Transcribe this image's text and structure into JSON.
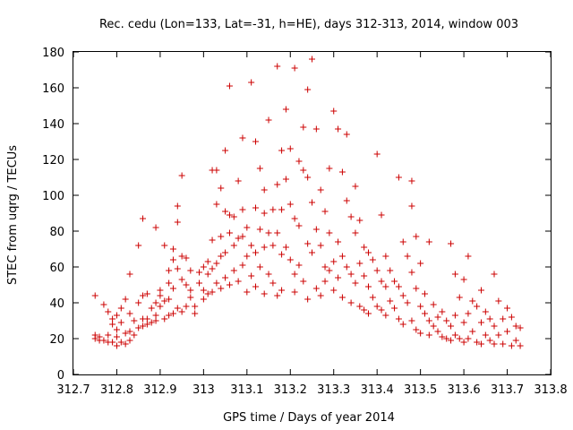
{
  "chart_data": {
    "type": "scatter",
    "title": "Rec. cedu (Lon=133, Lat=-31, h=HE), days 312-313, 2014, window 003",
    "xlabel": "GPS time / Days of year 2014",
    "ylabel": "STEC from uqrg / TECUs",
    "xlim": [
      312.7,
      313.8
    ],
    "ylim": [
      0,
      180
    ],
    "xticks": [
      "312.7",
      "312.8",
      "312.9",
      "313",
      "313.1",
      "313.2",
      "313.3",
      "313.4",
      "313.5",
      "313.6",
      "313.7",
      "313.8"
    ],
    "yticks": [
      "0",
      "20",
      "40",
      "60",
      "80",
      "100",
      "120",
      "140",
      "160",
      "180"
    ],
    "marker": "+",
    "color": "#cc0000",
    "grid": false,
    "legend": "none",
    "points": [
      [
        312.75,
        44
      ],
      [
        312.75,
        22
      ],
      [
        312.75,
        20
      ],
      [
        312.76,
        21
      ],
      [
        312.76,
        19
      ],
      [
        312.77,
        39
      ],
      [
        312.77,
        19
      ],
      [
        312.78,
        35
      ],
      [
        312.78,
        22
      ],
      [
        312.78,
        18
      ],
      [
        312.79,
        31
      ],
      [
        312.79,
        28
      ],
      [
        312.79,
        18
      ],
      [
        312.8,
        33
      ],
      [
        312.8,
        25
      ],
      [
        312.8,
        21
      ],
      [
        312.8,
        16
      ],
      [
        312.81,
        37
      ],
      [
        312.81,
        29
      ],
      [
        312.81,
        18
      ],
      [
        312.82,
        42
      ],
      [
        312.82,
        23
      ],
      [
        312.82,
        17
      ],
      [
        312.83,
        56
      ],
      [
        312.83,
        34
      ],
      [
        312.83,
        24
      ],
      [
        312.83,
        19
      ],
      [
        312.84,
        30
      ],
      [
        312.84,
        22
      ],
      [
        312.85,
        72
      ],
      [
        312.85,
        40
      ],
      [
        312.85,
        26
      ],
      [
        312.86,
        87
      ],
      [
        312.86,
        44
      ],
      [
        312.86,
        31
      ],
      [
        312.86,
        27
      ],
      [
        312.87,
        45
      ],
      [
        312.87,
        31
      ],
      [
        312.87,
        28
      ],
      [
        312.88,
        37
      ],
      [
        312.88,
        29
      ],
      [
        312.89,
        82
      ],
      [
        312.89,
        40
      ],
      [
        312.89,
        33
      ],
      [
        312.89,
        30
      ],
      [
        312.9,
        47
      ],
      [
        312.9,
        44
      ],
      [
        312.9,
        38
      ],
      [
        312.91,
        72
      ],
      [
        312.91,
        41
      ],
      [
        312.91,
        31
      ],
      [
        312.92,
        58
      ],
      [
        312.92,
        51
      ],
      [
        312.92,
        42
      ],
      [
        312.92,
        33
      ],
      [
        312.93,
        70
      ],
      [
        312.93,
        64
      ],
      [
        312.93,
        48
      ],
      [
        312.93,
        34
      ],
      [
        312.94,
        94
      ],
      [
        312.94,
        85
      ],
      [
        312.94,
        59
      ],
      [
        312.94,
        37
      ],
      [
        312.95,
        111
      ],
      [
        312.95,
        66
      ],
      [
        312.95,
        53
      ],
      [
        312.95,
        35
      ],
      [
        312.96,
        65
      ],
      [
        312.96,
        50
      ],
      [
        312.96,
        38
      ],
      [
        312.97,
        58
      ],
      [
        312.97,
        47
      ],
      [
        312.97,
        43
      ],
      [
        312.98,
        38
      ],
      [
        312.98,
        34
      ],
      [
        312.99,
        57
      ],
      [
        312.99,
        51
      ],
      [
        313.0,
        60
      ],
      [
        313.0,
        47
      ],
      [
        313.0,
        42
      ],
      [
        313.01,
        63
      ],
      [
        313.01,
        56
      ],
      [
        313.01,
        45
      ],
      [
        313.02,
        114
      ],
      [
        313.02,
        75
      ],
      [
        313.02,
        59
      ],
      [
        313.02,
        46
      ],
      [
        313.03,
        114
      ],
      [
        313.03,
        95
      ],
      [
        313.03,
        62
      ],
      [
        313.03,
        51
      ],
      [
        313.04,
        104
      ],
      [
        313.04,
        77
      ],
      [
        313.04,
        66
      ],
      [
        313.04,
        48
      ],
      [
        313.05,
        125
      ],
      [
        313.05,
        91
      ],
      [
        313.05,
        68
      ],
      [
        313.05,
        54
      ],
      [
        313.06,
        161
      ],
      [
        313.06,
        89
      ],
      [
        313.06,
        79
      ],
      [
        313.06,
        50
      ],
      [
        313.07,
        88
      ],
      [
        313.07,
        72
      ],
      [
        313.07,
        58
      ],
      [
        313.08,
        108
      ],
      [
        313.08,
        76
      ],
      [
        313.08,
        52
      ],
      [
        313.09,
        132
      ],
      [
        313.09,
        92
      ],
      [
        313.09,
        77
      ],
      [
        313.09,
        61
      ],
      [
        313.1,
        82
      ],
      [
        313.1,
        66
      ],
      [
        313.1,
        46
      ],
      [
        313.11,
        163
      ],
      [
        313.11,
        72
      ],
      [
        313.11,
        55
      ],
      [
        313.12,
        130
      ],
      [
        313.12,
        93
      ],
      [
        313.12,
        68
      ],
      [
        313.12,
        49
      ],
      [
        313.13,
        115
      ],
      [
        313.13,
        81
      ],
      [
        313.13,
        60
      ],
      [
        313.14,
        103
      ],
      [
        313.14,
        90
      ],
      [
        313.14,
        71
      ],
      [
        313.14,
        45
      ],
      [
        313.15,
        142
      ],
      [
        313.15,
        79
      ],
      [
        313.15,
        56
      ],
      [
        313.16,
        92
      ],
      [
        313.16,
        72
      ],
      [
        313.16,
        51
      ],
      [
        313.17,
        172
      ],
      [
        313.17,
        106
      ],
      [
        313.17,
        79
      ],
      [
        313.17,
        44
      ],
      [
        313.18,
        125
      ],
      [
        313.18,
        92
      ],
      [
        313.18,
        67
      ],
      [
        313.18,
        47
      ],
      [
        313.19,
        148
      ],
      [
        313.19,
        109
      ],
      [
        313.19,
        71
      ],
      [
        313.2,
        126
      ],
      [
        313.2,
        95
      ],
      [
        313.2,
        64
      ],
      [
        313.21,
        171
      ],
      [
        313.21,
        87
      ],
      [
        313.21,
        56
      ],
      [
        313.21,
        46
      ],
      [
        313.22,
        119
      ],
      [
        313.22,
        83
      ],
      [
        313.22,
        61
      ],
      [
        313.23,
        138
      ],
      [
        313.23,
        114
      ],
      [
        313.23,
        52
      ],
      [
        313.24,
        159
      ],
      [
        313.24,
        110
      ],
      [
        313.24,
        73
      ],
      [
        313.24,
        42
      ],
      [
        313.25,
        176
      ],
      [
        313.25,
        96
      ],
      [
        313.25,
        68
      ],
      [
        313.26,
        137
      ],
      [
        313.26,
        81
      ],
      [
        313.26,
        48
      ],
      [
        313.27,
        103
      ],
      [
        313.27,
        72
      ],
      [
        313.27,
        44
      ],
      [
        313.28,
        91
      ],
      [
        313.28,
        60
      ],
      [
        313.28,
        52
      ],
      [
        313.29,
        115
      ],
      [
        313.29,
        79
      ],
      [
        313.29,
        58
      ],
      [
        313.3,
        147
      ],
      [
        313.3,
        63
      ],
      [
        313.3,
        47
      ],
      [
        313.31,
        137
      ],
      [
        313.31,
        74
      ],
      [
        313.31,
        54
      ],
      [
        313.32,
        113
      ],
      [
        313.32,
        66
      ],
      [
        313.32,
        43
      ],
      [
        313.33,
        134
      ],
      [
        313.33,
        97
      ],
      [
        313.33,
        60
      ],
      [
        313.34,
        88
      ],
      [
        313.34,
        56
      ],
      [
        313.34,
        40
      ],
      [
        313.35,
        105
      ],
      [
        313.35,
        79
      ],
      [
        313.35,
        51
      ],
      [
        313.36,
        86
      ],
      [
        313.36,
        62
      ],
      [
        313.36,
        38
      ],
      [
        313.37,
        71
      ],
      [
        313.37,
        55
      ],
      [
        313.37,
        36
      ],
      [
        313.38,
        68
      ],
      [
        313.38,
        49
      ],
      [
        313.38,
        34
      ],
      [
        313.39,
        64
      ],
      [
        313.39,
        43
      ],
      [
        313.4,
        123
      ],
      [
        313.4,
        58
      ],
      [
        313.4,
        38
      ],
      [
        313.41,
        89
      ],
      [
        313.41,
        52
      ],
      [
        313.41,
        36
      ],
      [
        313.42,
        66
      ],
      [
        313.42,
        49
      ],
      [
        313.42,
        33
      ],
      [
        313.43,
        58
      ],
      [
        313.43,
        41
      ],
      [
        313.44,
        52
      ],
      [
        313.44,
        37
      ],
      [
        313.45,
        110
      ],
      [
        313.45,
        49
      ],
      [
        313.45,
        31
      ],
      [
        313.46,
        74
      ],
      [
        313.46,
        44
      ],
      [
        313.46,
        28
      ],
      [
        313.47,
        66
      ],
      [
        313.47,
        40
      ],
      [
        313.48,
        108
      ],
      [
        313.48,
        94
      ],
      [
        313.48,
        57
      ],
      [
        313.48,
        30
      ],
      [
        313.49,
        77
      ],
      [
        313.49,
        48
      ],
      [
        313.49,
        25
      ],
      [
        313.5,
        62
      ],
      [
        313.5,
        38
      ],
      [
        313.5,
        23
      ],
      [
        313.51,
        45
      ],
      [
        313.51,
        34
      ],
      [
        313.52,
        74
      ],
      [
        313.52,
        30
      ],
      [
        313.52,
        22
      ],
      [
        313.53,
        39
      ],
      [
        313.53,
        27
      ],
      [
        313.54,
        32
      ],
      [
        313.54,
        24
      ],
      [
        313.55,
        35
      ],
      [
        313.55,
        21
      ],
      [
        313.56,
        30
      ],
      [
        313.56,
        20
      ],
      [
        313.57,
        73
      ],
      [
        313.57,
        27
      ],
      [
        313.57,
        19
      ],
      [
        313.58,
        56
      ],
      [
        313.58,
        33
      ],
      [
        313.58,
        22
      ],
      [
        313.59,
        43
      ],
      [
        313.59,
        20
      ],
      [
        313.6,
        53
      ],
      [
        313.6,
        29
      ],
      [
        313.6,
        18
      ],
      [
        313.61,
        66
      ],
      [
        313.61,
        34
      ],
      [
        313.61,
        20
      ],
      [
        313.62,
        41
      ],
      [
        313.62,
        24
      ],
      [
        313.63,
        38
      ],
      [
        313.63,
        18
      ],
      [
        313.64,
        47
      ],
      [
        313.64,
        29
      ],
      [
        313.64,
        17
      ],
      [
        313.65,
        35
      ],
      [
        313.65,
        22
      ],
      [
        313.66,
        31
      ],
      [
        313.66,
        19
      ],
      [
        313.67,
        56
      ],
      [
        313.67,
        27
      ],
      [
        313.67,
        17
      ],
      [
        313.68,
        41
      ],
      [
        313.68,
        22
      ],
      [
        313.69,
        31
      ],
      [
        313.69,
        17
      ],
      [
        313.7,
        37
      ],
      [
        313.7,
        24
      ],
      [
        313.71,
        32
      ],
      [
        313.71,
        16
      ],
      [
        313.72,
        27
      ],
      [
        313.72,
        19
      ],
      [
        313.73,
        26
      ],
      [
        313.73,
        16
      ]
    ]
  }
}
